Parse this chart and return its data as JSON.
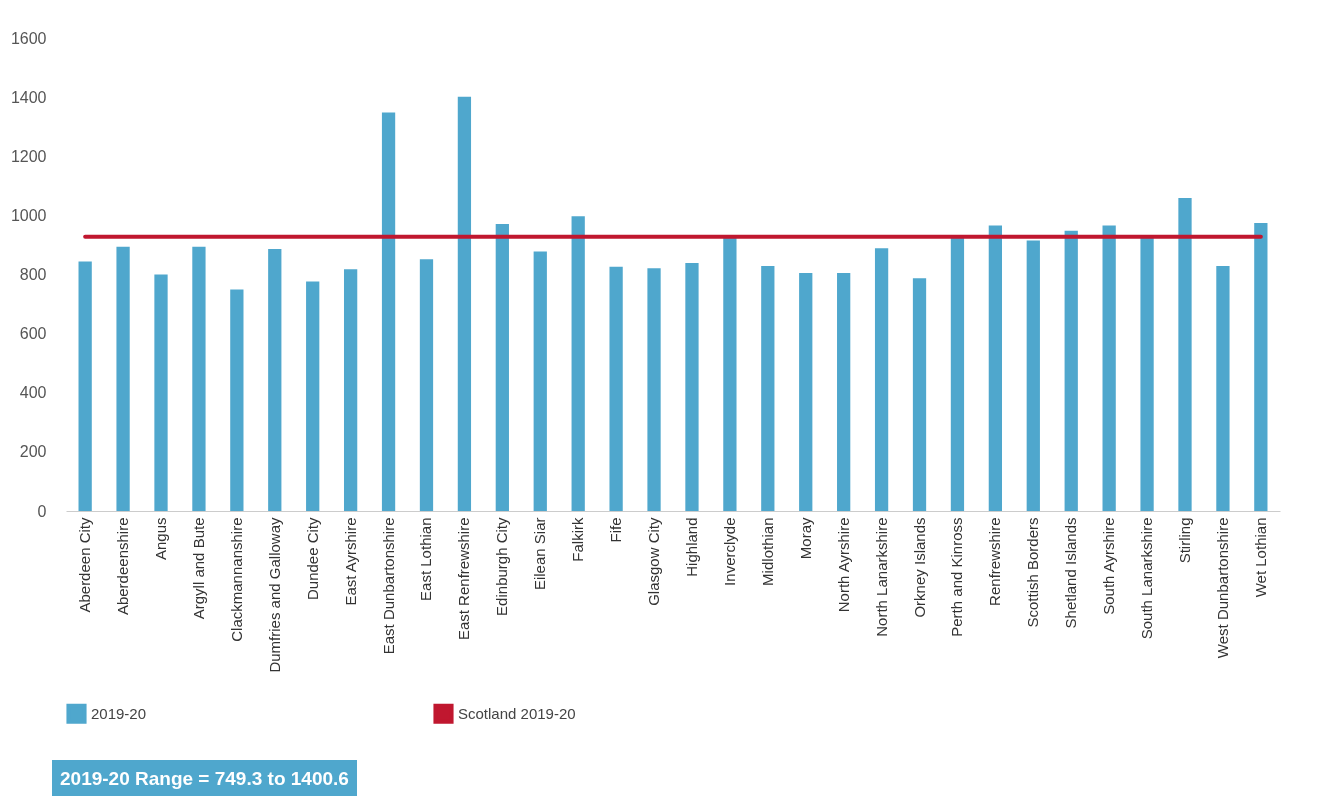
{
  "chart_data": {
    "type": "bar",
    "categories": [
      "Aberdeen City",
      "Aberdeenshire",
      "Angus",
      "Argyll and Bute",
      "Clackmannanshire",
      "Dumfries and Galloway",
      "Dundee City",
      "East Ayrshire",
      "East Dunbartonshire",
      "East Lothian",
      "East Renfrewshire",
      "Edinburgh City",
      "Eilean Siar",
      "Falkirk",
      "Fife",
      "Glasgow City",
      "Highland",
      "Inverclyde",
      "Midlothian",
      "Moray",
      "North Ayrshire",
      "North Lanarkshire",
      "Orkney Islands",
      "Perth and Kinross",
      "Renfrewshire",
      "Scottish Borders",
      "Shetland Islands",
      "South Ayrshire",
      "South Lanarkshire",
      "Stirling",
      "West Dunbartonshire",
      "Wet Lothian"
    ],
    "series": [
      {
        "name": "2019-20",
        "color": "#4fa7cd",
        "values": [
          844,
          894,
          800,
          894,
          749,
          886,
          776,
          818,
          1348,
          852,
          1401,
          971,
          878,
          997,
          826,
          821,
          839,
          930,
          829,
          805,
          805,
          889,
          787,
          930,
          966,
          915,
          948,
          966,
          930,
          1059,
          829,
          974
        ]
      },
      {
        "name": "Scotland 2019-20",
        "type": "line",
        "color": "#c0172f",
        "values": [
          928,
          928,
          928,
          928,
          928,
          928,
          928,
          928,
          928,
          928,
          928,
          928,
          928,
          928,
          928,
          928,
          928,
          928,
          928,
          928,
          928,
          928,
          928,
          928,
          928,
          928,
          928,
          928,
          928,
          928,
          928,
          928
        ]
      }
    ],
    "ylim": [
      0,
      1600
    ],
    "yticks": [
      0,
      200,
      400,
      600,
      800,
      1000,
      1200,
      1400,
      1600
    ],
    "grid": false,
    "legend": "bottom",
    "annotations": [
      "2019-20 Range = 749.3 to 1400.6"
    ]
  }
}
